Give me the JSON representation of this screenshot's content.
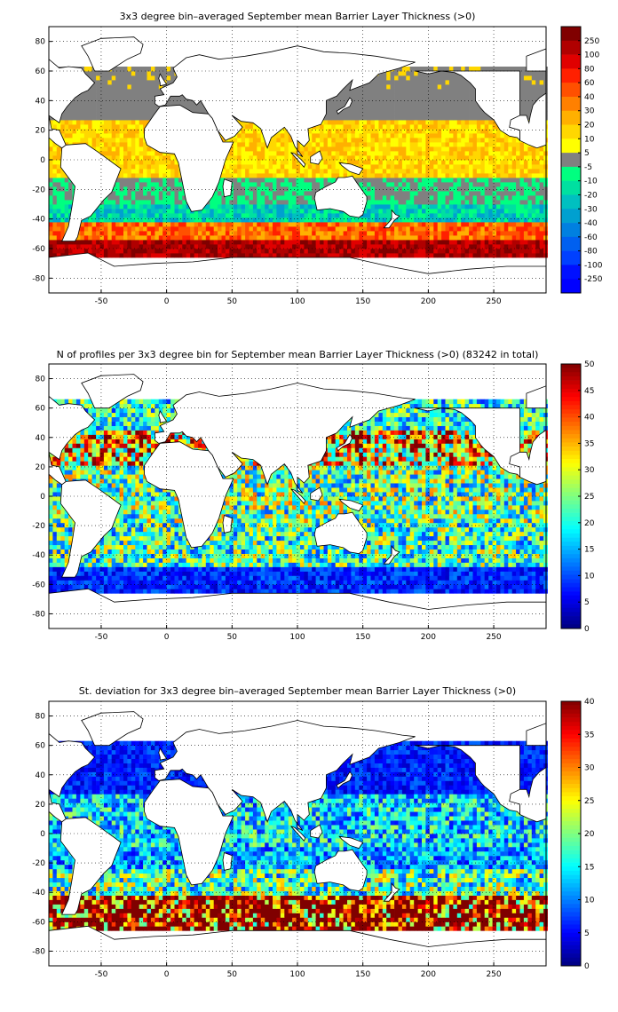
{
  "chart_data": [
    {
      "type": "heatmap",
      "title": "3x3 degree bin–averaged September mean Barrier Layer Thickness (>0)",
      "x_ticks": [
        -50,
        0,
        50,
        100,
        150,
        200,
        250
      ],
      "y_ticks": [
        80,
        60,
        40,
        20,
        0,
        -20,
        -40,
        -60,
        -80
      ],
      "xlim": [
        -90,
        290
      ],
      "ylim": [
        -90,
        90
      ],
      "grid": true,
      "colorbar": {
        "labels": [
          "250",
          "100",
          "80",
          "60",
          "40",
          "30",
          "20",
          "10",
          "5",
          "-5",
          "-10",
          "-20",
          "-30",
          "-40",
          "-60",
          "-80",
          "-100",
          "-250"
        ],
        "colors": [
          "#800000",
          "#b00000",
          "#e00000",
          "#ff2000",
          "#ff5000",
          "#ff8000",
          "#ffb000",
          "#ffd700",
          "#ffff00",
          "#808080",
          "#00ff80",
          "#00e0a0",
          "#00c0c0",
          "#00a0d0",
          "#0080e0",
          "#0060f0",
          "#0040ff",
          "#0010ff",
          "#0000ff"
        ]
      },
      "bands": [
        {
          "lat": [
            -66,
            -54
          ],
          "value": 120
        },
        {
          "lat": [
            -54,
            -44
          ],
          "value": 40
        },
        {
          "lat": [
            -44,
            -32
          ],
          "value": -20
        },
        {
          "lat": [
            -32,
            -12
          ],
          "value": -10
        },
        {
          "lat": [
            -12,
            25
          ],
          "value": 10
        },
        {
          "lat": [
            25,
            62
          ],
          "value": 0
        }
      ]
    },
    {
      "type": "heatmap",
      "title": "N of profiles per 3x3 degree bin for September mean Barrier Layer Thickness (>0) (83242 in total)",
      "x_ticks": [
        -50,
        0,
        50,
        100,
        150,
        200,
        250
      ],
      "y_ticks": [
        80,
        60,
        40,
        20,
        0,
        -20,
        -40,
        -60,
        -80
      ],
      "xlim": [
        -90,
        290
      ],
      "ylim": [
        -90,
        90
      ],
      "grid": true,
      "total_profiles": 83242,
      "colorbar": {
        "min": 0,
        "max": 50,
        "labels": [
          "50",
          "45",
          "40",
          "35",
          "30",
          "25",
          "20",
          "15",
          "10",
          "5",
          "0"
        ]
      },
      "bands": [
        {
          "lat": [
            -66,
            -50
          ],
          "value": 8
        },
        {
          "lat": [
            -50,
            -20
          ],
          "value": 22
        },
        {
          "lat": [
            -20,
            20
          ],
          "value": 24
        },
        {
          "lat": [
            20,
            45
          ],
          "value": 35
        },
        {
          "lat": [
            45,
            65
          ],
          "value": 20
        }
      ]
    },
    {
      "type": "heatmap",
      "title": "St. deviation for 3x3 degree bin–averaged September mean Barrier Layer Thickness (>0)",
      "x_ticks": [
        -50,
        0,
        50,
        100,
        150,
        200,
        250
      ],
      "y_ticks": [
        80,
        60,
        40,
        20,
        0,
        -20,
        -40,
        -60,
        -80
      ],
      "xlim": [
        -90,
        290
      ],
      "ylim": [
        -90,
        90
      ],
      "grid": true,
      "colorbar": {
        "min": 0,
        "max": 40,
        "labels": [
          "40",
          "35",
          "30",
          "25",
          "20",
          "15",
          "10",
          "5",
          "0"
        ]
      },
      "bands": [
        {
          "lat": [
            -66,
            -42
          ],
          "value": 40
        },
        {
          "lat": [
            -42,
            -25
          ],
          "value": 18
        },
        {
          "lat": [
            -25,
            -10
          ],
          "value": 12
        },
        {
          "lat": [
            -10,
            25
          ],
          "value": 14
        },
        {
          "lat": [
            25,
            62
          ],
          "value": 6
        }
      ]
    }
  ]
}
